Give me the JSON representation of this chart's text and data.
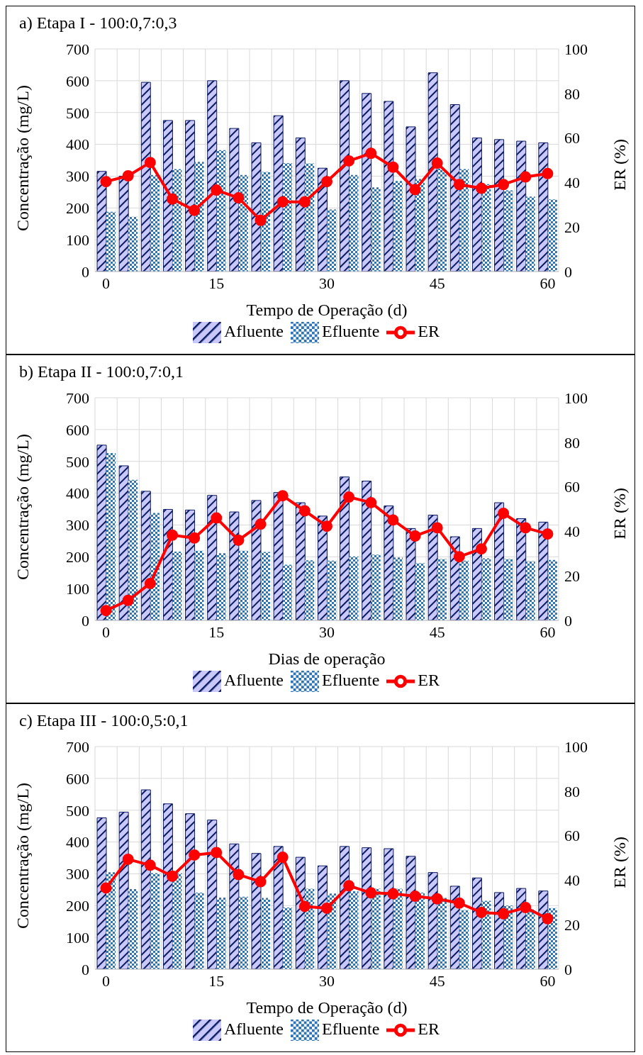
{
  "chart_data": [
    {
      "type": "bar",
      "title": "a) Etapa I - 100:0,7:0,3",
      "xlabel": "Tempo de Operação (d)",
      "ylabel": "Concentração (mg/L)",
      "y2label": "ER (%)",
      "x": [
        0,
        3,
        6,
        9,
        12,
        15,
        18,
        21,
        24,
        27,
        30,
        33,
        36,
        39,
        42,
        45,
        48,
        51,
        54,
        57,
        60
      ],
      "xlim": [
        -1.5,
        61.5
      ],
      "xticks": [
        0,
        15,
        30,
        45,
        60
      ],
      "ylim": [
        0,
        700
      ],
      "yticks": [
        0,
        100,
        200,
        300,
        400,
        500,
        600,
        700
      ],
      "y2lim": [
        0,
        100
      ],
      "y2ticks": [
        0,
        20,
        40,
        60,
        80,
        100
      ],
      "grid": true,
      "legend": "bottom",
      "series": [
        {
          "name": "Afluente",
          "color": "#0b1a5e",
          "values": [
            315,
            300,
            595,
            475,
            475,
            600,
            450,
            405,
            490,
            420,
            325,
            600,
            560,
            535,
            455,
            625,
            525,
            420,
            415,
            410,
            405
          ]
        },
        {
          "name": "Efluente",
          "color": "#2e75b6",
          "values": [
            188,
            172,
            304,
            322,
            345,
            382,
            304,
            313,
            341,
            340,
            195,
            304,
            265,
            285,
            291,
            324,
            322,
            275,
            255,
            236,
            227
          ]
        },
        {
          "name": "ER",
          "type": "line",
          "axis": "y2",
          "color": "#ff0000",
          "marker": "circle",
          "values": [
            40.4,
            43,
            49,
            32.6,
            27.5,
            36.6,
            33.1,
            23,
            31.3,
            31.3,
            40.4,
            49.7,
            53.1,
            46.9,
            36.8,
            48.7,
            39.1,
            37.4,
            39.1,
            42.5,
            44
          ]
        }
      ]
    },
    {
      "type": "bar",
      "title": "b) Etapa II - 100:0,7:0,1",
      "xlabel": "Dias de operação",
      "ylabel": "Concentração (mg/L)",
      "y2label": "ER (%)",
      "x": [
        0,
        3,
        6,
        9,
        12,
        15,
        18,
        21,
        24,
        27,
        30,
        33,
        36,
        39,
        42,
        45,
        48,
        51,
        54,
        57,
        60
      ],
      "xlim": [
        -1.5,
        61.5
      ],
      "xticks": [
        0,
        15,
        30,
        45,
        60
      ],
      "ylim": [
        0,
        700
      ],
      "yticks": [
        0,
        100,
        200,
        300,
        400,
        500,
        600,
        700
      ],
      "y2lim": [
        0,
        100
      ],
      "y2ticks": [
        0,
        20,
        40,
        60,
        80,
        100
      ],
      "grid": true,
      "legend": "bottom",
      "series": [
        {
          "name": "Afluente",
          "color": "#0b1a5e",
          "values": [
            551,
            486,
            406,
            349,
            347,
            393,
            341,
            377,
            402,
            370,
            328,
            451,
            438,
            360,
            289,
            331,
            263,
            289,
            370,
            320,
            309
          ]
        },
        {
          "name": "Efluente",
          "color": "#2e75b6",
          "values": [
            526,
            442,
            338,
            216,
            219,
            211,
            219,
            215,
            175,
            189,
            188,
            201,
            207,
            198,
            180,
            193,
            188,
            195,
            193,
            186,
            190
          ]
        },
        {
          "name": "ER",
          "type": "line",
          "axis": "y2",
          "color": "#ff0000",
          "marker": "circle",
          "values": [
            4.4,
            9,
            16.6,
            38.3,
            37,
            46,
            36,
            43.2,
            56,
            49.2,
            42.3,
            55.4,
            52.9,
            45.1,
            37.9,
            41.6,
            28.6,
            32.1,
            48.1,
            41.6,
            38.8
          ]
        }
      ]
    },
    {
      "type": "bar",
      "title": "c) Etapa III - 100:0,5:0,1",
      "xlabel": "Tempo de Operação (d)",
      "ylabel": "Concentração (mg/L)",
      "y2label": "ER (%)",
      "x": [
        0,
        3,
        6,
        9,
        12,
        15,
        18,
        21,
        24,
        27,
        30,
        33,
        36,
        39,
        42,
        45,
        48,
        51,
        54,
        57,
        60
      ],
      "xlim": [
        -1.5,
        61.5
      ],
      "xticks": [
        0,
        15,
        30,
        45,
        60
      ],
      "ylim": [
        0,
        700
      ],
      "yticks": [
        0,
        100,
        200,
        300,
        400,
        500,
        600,
        700
      ],
      "y2lim": [
        0,
        100
      ],
      "y2ticks": [
        0,
        20,
        40,
        60,
        80,
        100
      ],
      "grid": true,
      "legend": "bottom",
      "series": [
        {
          "name": "Afluente",
          "color": "#0b1a5e",
          "values": [
            476,
            494,
            564,
            520,
            489,
            469,
            394,
            364,
            386,
            352,
            325,
            386,
            382,
            379,
            355,
            304,
            261,
            287,
            241,
            254,
            246
          ]
        },
        {
          "name": "Efluente",
          "color": "#2e75b6",
          "values": [
            305,
            252,
            302,
            302,
            241,
            225,
            228,
            224,
            194,
            253,
            238,
            245,
            253,
            253,
            241,
            224,
            186,
            215,
            200,
            188,
            192
          ]
        },
        {
          "name": "ER",
          "type": "line",
          "axis": "y2",
          "color": "#ff0000",
          "marker": "circle",
          "values": [
            36.5,
            49.4,
            46.7,
            41.8,
            51.3,
            52.4,
            42.5,
            39.3,
            50.3,
            28.2,
            27.4,
            37.5,
            34.3,
            33.9,
            32.8,
            31.6,
            29.7,
            25.5,
            24.9,
            27.7,
            22.7
          ]
        }
      ]
    }
  ]
}
